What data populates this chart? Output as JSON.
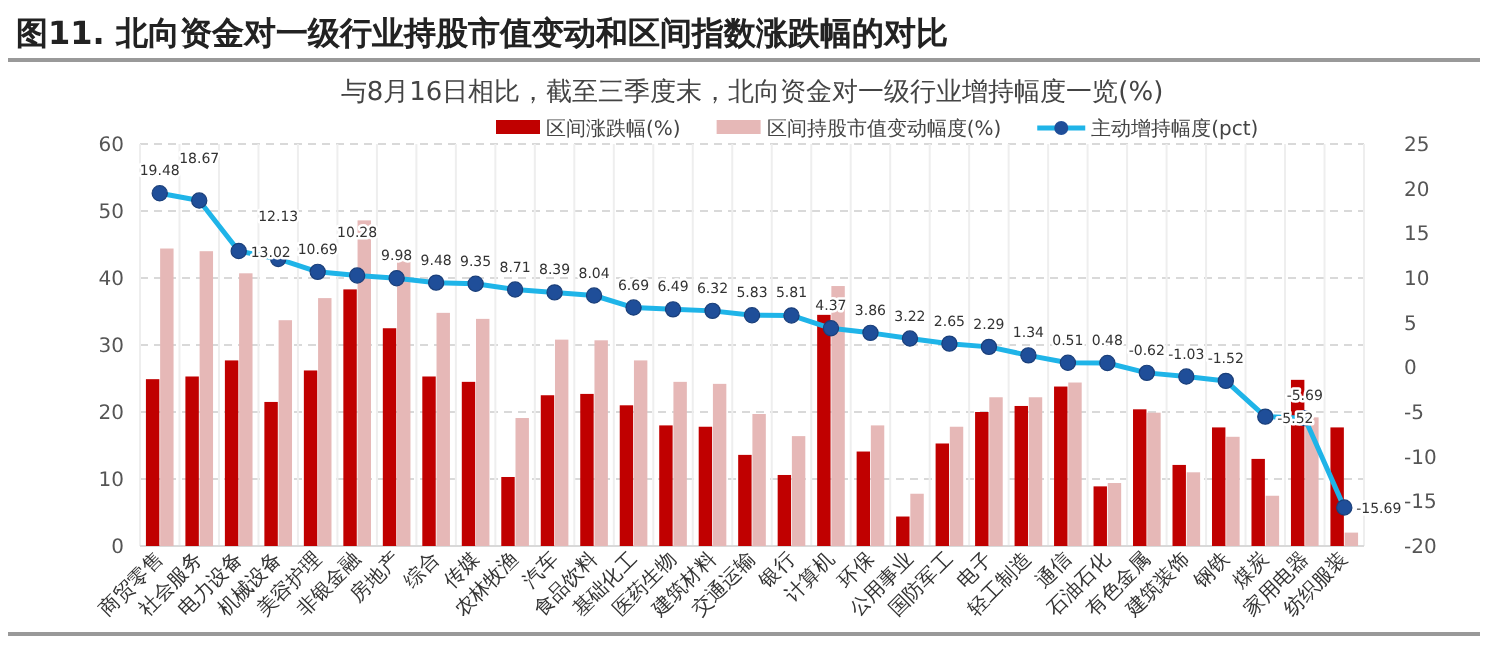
{
  "chart_data": {
    "type": "bar",
    "title": "图11. 北向资金对一级行业持股市值变动和区间指数涨跌幅的对比",
    "subtitle": "与8月16日相比，截至三季度末，北向资金对一级行业增持幅度一览(%)",
    "categories": [
      "商贸零售",
      "社会服务",
      "电力设备",
      "机械设备",
      "美容护理",
      "非银金融",
      "房地产",
      "综合",
      "传媒",
      "农林牧渔",
      "汽车",
      "食品饮料",
      "基础化工",
      "医药生物",
      "建筑材料",
      "交通运输",
      "银行",
      "计算机",
      "环保",
      "公用事业",
      "国防军工",
      "电子",
      "轻工制造",
      "通信",
      "石油石化",
      "有色金属",
      "建筑装饰",
      "钢铁",
      "煤炭",
      "家用电器",
      "纺织服装"
    ],
    "series": [
      {
        "name": "区间涨跌幅(%)",
        "color": "#c00000",
        "values": [
          24.9,
          25.3,
          27.7,
          21.5,
          26.2,
          38.3,
          32.5,
          25.3,
          24.5,
          10.3,
          22.5,
          22.7,
          21.0,
          18.0,
          17.8,
          13.6,
          10.6,
          34.5,
          14.1,
          4.4,
          15.3,
          20.0,
          20.9,
          23.8,
          8.9,
          20.4,
          12.1,
          17.7,
          13.0,
          24.8,
          17.7
        ]
      },
      {
        "name": "区间持股市值变动幅度(%)",
        "color": "#e6b8b7",
        "values": [
          44.4,
          44.0,
          40.7,
          33.7,
          37.0,
          48.6,
          42.5,
          34.8,
          33.9,
          19.1,
          30.8,
          30.7,
          27.7,
          24.5,
          24.2,
          19.7,
          16.4,
          38.8,
          18.0,
          7.8,
          17.8,
          22.2,
          22.2,
          24.4,
          9.4,
          19.9,
          11.0,
          16.3,
          7.5,
          19.2,
          2.0
        ]
      },
      {
        "name": "主动增持幅度(pct)",
        "color": "#1fb4e8",
        "type": "line",
        "axis": "y2",
        "values": [
          19.48,
          18.67,
          13.02,
          12.13,
          10.69,
          10.28,
          9.98,
          9.48,
          9.35,
          8.71,
          8.39,
          8.04,
          6.69,
          6.49,
          6.32,
          5.83,
          5.81,
          4.37,
          3.86,
          3.22,
          2.65,
          2.29,
          1.34,
          0.51,
          0.48,
          -0.62,
          -1.03,
          -1.52,
          -5.52,
          -5.69,
          -15.69
        ],
        "data_labels": true
      }
    ],
    "marker": "circle",
    "ylim": [
      0,
      60
    ],
    "yticks": [
      0,
      10,
      20,
      30,
      40,
      50,
      60
    ],
    "y2lim": [
      -20,
      25
    ],
    "y2ticks": [
      -20,
      -15,
      -10,
      -5,
      0,
      5,
      10,
      15,
      20,
      25
    ],
    "grid": true,
    "legend": "top"
  }
}
